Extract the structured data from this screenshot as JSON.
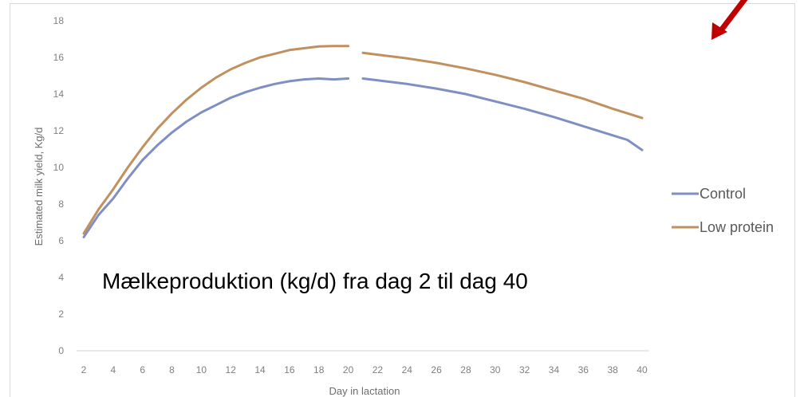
{
  "chart_data": {
    "type": "line",
    "title": "",
    "xlabel": "Day in lactation",
    "ylabel": "Estimated milk yield, Kg/d",
    "ylim": [
      0,
      18
    ],
    "yticks": [
      0,
      2,
      4,
      6,
      8,
      10,
      12,
      14,
      16,
      18
    ],
    "xticks": [
      2,
      4,
      6,
      8,
      10,
      12,
      14,
      16,
      18,
      20,
      22,
      24,
      26,
      28,
      30,
      32,
      34,
      36,
      38,
      40
    ],
    "grid": false,
    "legend": "right",
    "annotation": "Mælkeproduktion (kg/d) fra dag 2 til dag 40",
    "series": [
      {
        "name": "Control",
        "color": "#7f8fc4",
        "segments": [
          [
            [
              2,
              6.2
            ],
            [
              3,
              7.4
            ],
            [
              4,
              8.3
            ],
            [
              5,
              9.4
            ],
            [
              6,
              10.4
            ],
            [
              7,
              11.2
            ],
            [
              8,
              11.9
            ],
            [
              9,
              12.5
            ],
            [
              10,
              13.0
            ],
            [
              11,
              13.4
            ],
            [
              12,
              13.8
            ],
            [
              13,
              14.1
            ],
            [
              14,
              14.35
            ],
            [
              15,
              14.55
            ],
            [
              16,
              14.7
            ],
            [
              17,
              14.8
            ],
            [
              18,
              14.85
            ],
            [
              19,
              14.8
            ],
            [
              20,
              14.85
            ]
          ],
          [
            [
              21,
              14.85
            ],
            [
              22,
              14.75
            ],
            [
              24,
              14.55
            ],
            [
              26,
              14.3
            ],
            [
              28,
              14.0
            ],
            [
              30,
              13.6
            ],
            [
              32,
              13.2
            ],
            [
              34,
              12.75
            ],
            [
              36,
              12.25
            ],
            [
              38,
              11.75
            ],
            [
              39,
              11.5
            ],
            [
              40,
              10.95
            ]
          ]
        ]
      },
      {
        "name": "Low protein",
        "color": "#c0905e",
        "segments": [
          [
            [
              2,
              6.4
            ],
            [
              3,
              7.7
            ],
            [
              4,
              8.8
            ],
            [
              5,
              10.0
            ],
            [
              6,
              11.1
            ],
            [
              7,
              12.1
            ],
            [
              8,
              12.95
            ],
            [
              9,
              13.7
            ],
            [
              10,
              14.35
            ],
            [
              11,
              14.9
            ],
            [
              12,
              15.35
            ],
            [
              13,
              15.7
            ],
            [
              14,
              16.0
            ],
            [
              15,
              16.2
            ],
            [
              16,
              16.4
            ],
            [
              17,
              16.5
            ],
            [
              18,
              16.6
            ],
            [
              19,
              16.62
            ],
            [
              20,
              16.62
            ]
          ],
          [
            [
              21,
              16.25
            ],
            [
              22,
              16.15
            ],
            [
              24,
              15.95
            ],
            [
              26,
              15.7
            ],
            [
              28,
              15.4
            ],
            [
              30,
              15.05
            ],
            [
              32,
              14.65
            ],
            [
              34,
              14.2
            ],
            [
              36,
              13.75
            ],
            [
              38,
              13.2
            ],
            [
              40,
              12.7
            ]
          ]
        ]
      }
    ]
  }
}
